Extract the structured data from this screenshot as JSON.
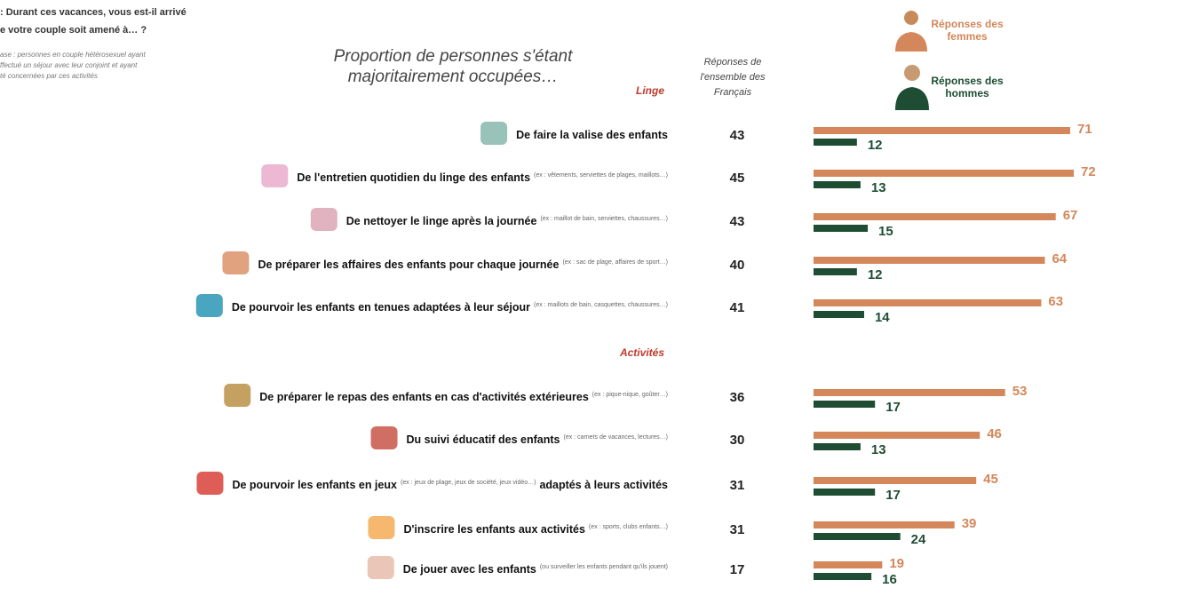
{
  "question": [
    ": Durant ces vacances, vous est-il arrivé",
    "e votre couple soit amené à… ?"
  ],
  "base": [
    "ase : personnes en couple hétérosexuel ayant",
    "ffectué un séjour avec leur conjoint et ayant",
    "té concernées par ces activités"
  ],
  "chart_data": {
    "type": "bar",
    "title": "Proportion de personnes s'étant majoritairement occupées…",
    "groups": [
      {
        "name": "Linge",
        "rows": [
          {
            "label": "De faire la valise des enfants"
          },
          {
            "label": "De l'entretien quotidien du linge des enfants",
            "note": "(ex : vêtements, serviettes de plages, maillots…)"
          },
          {
            "label": "De nettoyer le linge après la journée",
            "note": "(ex : maillot de bain, serviettes, chaussures…)"
          },
          {
            "label": "De préparer les affaires des enfants pour chaque journée",
            "note": "(ex : sac de plage, affaires de sport…)"
          },
          {
            "label": "De pourvoir les enfants en tenues adaptées à leur séjour",
            "note": "(ex : maillots de bain, casquettes, chaussures…)"
          }
        ]
      },
      {
        "name": "Activités",
        "rows": [
          {
            "label": "De préparer le repas des enfants en cas d'activités extérieures",
            "note": "(ex : pique-nique, goûter…)"
          },
          {
            "label": "Du suivi éducatif des enfants",
            "note": "(ex : carnets de vacances, lectures…)"
          },
          {
            "label": "De pourvoir les enfants en jeux",
            "note": "(ex : jeux de plage, jeux de société, jeux vidéo…)",
            "suffix": "adaptés à leurs activités"
          },
          {
            "label": "D'inscrire les enfants aux activités",
            "note": "(ex : sports, clubs enfants…)"
          },
          {
            "label": "De jouer avec les enfants",
            "note": "(ou surveiller les enfants pendant qu'ils jouent)"
          }
        ]
      }
    ],
    "series": [
      {
        "name": "Réponses de l'ensemble des Français",
        "color": "#222222",
        "values": [
          43,
          45,
          43,
          40,
          41,
          36,
          30,
          31,
          31,
          17
        ]
      },
      {
        "name": "Réponses des femmes",
        "color": "#d4875a",
        "values": [
          71,
          72,
          67,
          64,
          63,
          53,
          46,
          45,
          39,
          19
        ]
      },
      {
        "name": "Réponses des hommes",
        "color": "#1e4d34",
        "values": [
          12,
          13,
          15,
          12,
          14,
          17,
          13,
          17,
          24,
          16
        ]
      }
    ]
  }
}
